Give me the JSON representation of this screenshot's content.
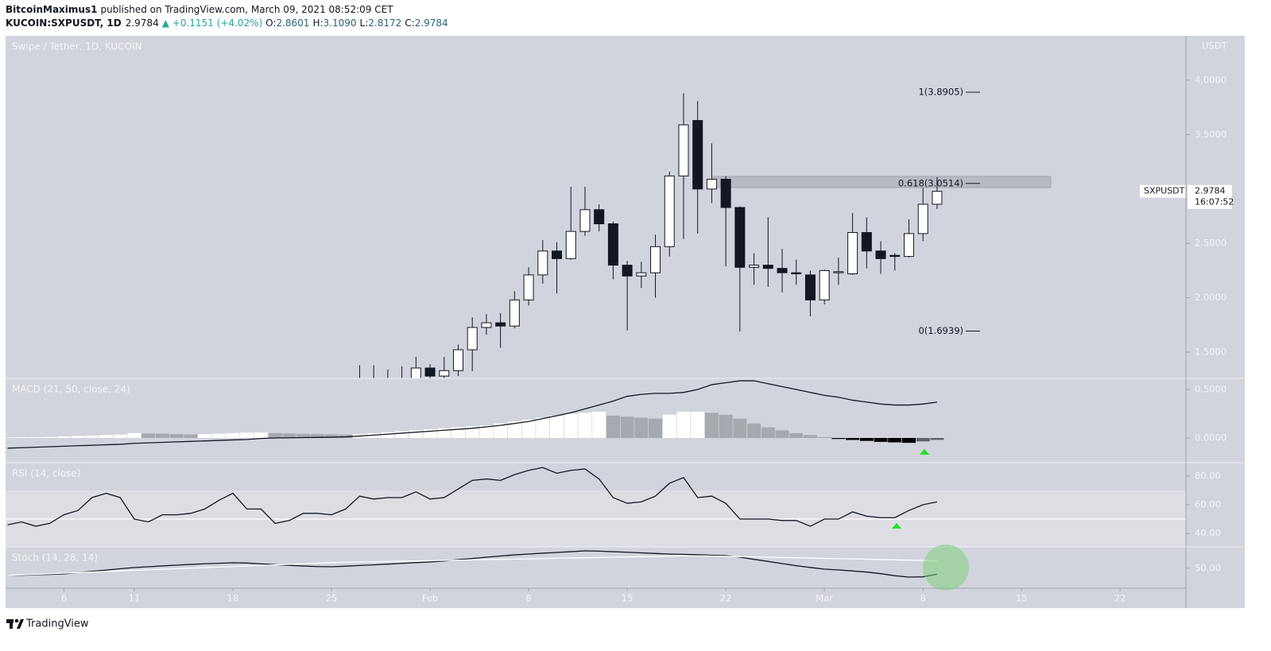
{
  "header": {
    "author": "BitcoinMaximus1",
    "published": "published on TradingView.com, March 09, 2021 08:52:09 CET",
    "symbol": "KUCOIN:SXPUSDT, 1D",
    "price": "2.9784",
    "change": "▲ +0.1151 (+4.02%)",
    "open_label": "O:",
    "open": "2.8601",
    "high_label": "H:",
    "high": "3.1090",
    "low_label": "L:",
    "low": "2.8172",
    "close_label": "C:",
    "close": "2.9784"
  },
  "price_tag": {
    "symbol": "SXPUSDT",
    "countdown": "16:07:52"
  },
  "footer": {
    "brand": "TradingView"
  },
  "chart_data": [
    {
      "type": "candlestick",
      "title": "Swipe / Tether, 1D, KUCOIN",
      "axis_label": "USDT",
      "x": [
        27,
        28,
        29,
        30,
        31,
        32,
        33,
        34,
        35,
        36,
        37,
        38,
        39,
        40,
        41,
        42,
        43,
        44,
        45,
        46,
        47,
        48,
        49,
        50,
        51,
        52,
        53,
        54,
        55,
        56,
        57,
        58,
        59,
        60,
        61,
        62,
        63,
        64,
        65,
        66,
        67,
        68
      ],
      "open": [
        1.22,
        1.24,
        1.23,
        1.22,
        1.25,
        1.354,
        1.28,
        1.33,
        1.522,
        1.727,
        1.77,
        1.74,
        1.98,
        2.21,
        2.43,
        2.36,
        2.61,
        2.81,
        2.68,
        2.3,
        2.2,
        2.23,
        2.47,
        3.12,
        3.63,
        3.0,
        3.09,
        2.83,
        2.28,
        2.3,
        2.27,
        2.23,
        2.21,
        1.98,
        2.23,
        2.22,
        2.6,
        2.43,
        2.39,
        2.38,
        2.59,
        2.8601
      ],
      "high": [
        1.38,
        1.38,
        1.34,
        1.37,
        1.456,
        1.39,
        1.456,
        1.57,
        1.82,
        1.85,
        1.86,
        2.06,
        2.28,
        2.53,
        2.51,
        3.02,
        3.02,
        2.86,
        2.7,
        2.34,
        2.33,
        2.58,
        3.16,
        3.88,
        3.81,
        3.42,
        3.12,
        2.84,
        2.41,
        2.74,
        2.45,
        2.35,
        2.25,
        2.26,
        2.37,
        2.78,
        2.74,
        2.52,
        2.41,
        2.72,
        3.01,
        3.109
      ],
      "low": [
        1.15,
        1.18,
        1.17,
        1.16,
        1.2,
        1.25,
        1.25,
        1.28,
        1.325,
        1.66,
        1.54,
        1.72,
        1.93,
        2.13,
        2.04,
        2.35,
        2.57,
        2.61,
        2.17,
        1.7,
        2.09,
        2.0,
        2.38,
        2.54,
        2.59,
        2.87,
        2.29,
        1.69,
        2.12,
        2.1,
        2.05,
        2.12,
        1.83,
        1.94,
        2.12,
        2.21,
        2.27,
        2.22,
        2.25,
        2.37,
        2.52,
        2.8172
      ],
      "close": [
        1.24,
        1.23,
        1.22,
        1.25,
        1.354,
        1.28,
        1.33,
        1.522,
        1.727,
        1.77,
        1.74,
        1.98,
        2.21,
        2.43,
        2.36,
        2.61,
        2.81,
        2.68,
        2.3,
        2.2,
        2.23,
        2.47,
        3.12,
        3.59,
        3.0,
        3.09,
        2.83,
        2.28,
        2.3,
        2.27,
        2.23,
        2.22,
        1.98,
        2.25,
        2.24,
        2.6,
        2.43,
        2.36,
        2.38,
        2.59,
        2.86,
        2.9784
      ],
      "up_color": "#ffffff",
      "down_color": "#131722",
      "annotations": [
        {
          "text": "1(3.8905)",
          "y": 3.8905
        },
        {
          "text": "0.618(3.0514)",
          "y": 3.0514
        },
        {
          "text": "0(1.6939)",
          "y": 1.6939
        }
      ],
      "xlim": [
        1.86,
        85.67
      ],
      "ylim": [
        1.259,
        4.409
      ],
      "yticks": [
        {
          "value": 1.5,
          "label": "1.5000"
        },
        {
          "value": 2,
          "label": "2.0000"
        },
        {
          "value": 2.5,
          "label": "2.5000"
        },
        {
          "value": 3,
          "label": "3.0000"
        },
        {
          "value": 3.5,
          "label": "3.5000"
        },
        {
          "value": 4,
          "label": "4.0000"
        }
      ]
    },
    {
      "type": "combo",
      "title": "MACD (21, 50, close, 24)",
      "x": [
        2,
        3,
        4,
        5,
        6,
        7,
        8,
        9,
        10,
        11,
        12,
        13,
        14,
        15,
        16,
        17,
        18,
        19,
        20,
        21,
        22,
        23,
        24,
        25,
        26,
        27,
        28,
        29,
        30,
        31,
        32,
        33,
        34,
        35,
        36,
        37,
        38,
        39,
        40,
        41,
        42,
        43,
        44,
        45,
        46,
        47,
        48,
        49,
        50,
        51,
        52,
        53,
        54,
        55,
        56,
        57,
        58,
        59,
        60,
        61,
        62,
        63,
        64,
        65,
        66,
        67,
        68
      ],
      "series": [
        {
          "type": "histogram",
          "colors": [
            "#ffffff",
            "#a7a9b0",
            "#000000",
            "#5f6168"
          ],
          "values": [
            0.005,
            0.007,
            0.008,
            0.01,
            0.015,
            0.02,
            0.025,
            0.03,
            0.035,
            0.05,
            0.047,
            0.044,
            0.04,
            0.038,
            0.04,
            0.045,
            0.05,
            0.055,
            0.056,
            0.05,
            0.046,
            0.043,
            0.04,
            0.038,
            0.035,
            0.04,
            0.05,
            0.06,
            0.07,
            0.08,
            0.09,
            0.1,
            0.11,
            0.12,
            0.13,
            0.15,
            0.17,
            0.19,
            0.21,
            0.23,
            0.25,
            0.26,
            0.27,
            0.23,
            0.22,
            0.21,
            0.2,
            0.24,
            0.27,
            0.27,
            0.26,
            0.24,
            0.2,
            0.15,
            0.11,
            0.08,
            0.05,
            0.03,
            0.01,
            -0.01,
            -0.02,
            -0.03,
            -0.04,
            -0.045,
            -0.05,
            -0.035,
            -0.02
          ]
        },
        {
          "type": "line",
          "color": "#131722",
          "values": [
            -0.105,
            -0.1,
            -0.095,
            -0.09,
            -0.085,
            -0.08,
            -0.075,
            -0.07,
            -0.065,
            -0.055,
            -0.05,
            -0.045,
            -0.04,
            -0.035,
            -0.03,
            -0.025,
            -0.02,
            -0.015,
            -0.005,
            0,
            0.002,
            0.004,
            0.006,
            0.008,
            0.012,
            0.02,
            0.03,
            0.04,
            0.05,
            0.06,
            0.07,
            0.08,
            0.09,
            0.1,
            0.115,
            0.13,
            0.15,
            0.17,
            0.2,
            0.23,
            0.26,
            0.3,
            0.34,
            0.38,
            0.43,
            0.45,
            0.46,
            0.46,
            0.47,
            0.5,
            0.55,
            0.57,
            0.59,
            0.59,
            0.56,
            0.53,
            0.5,
            0.47,
            0.44,
            0.42,
            0.39,
            0.37,
            0.35,
            0.34,
            0.34,
            0.35,
            0.37
          ]
        }
      ],
      "xlim": [
        1.86,
        85.67
      ],
      "ylim": [
        -0.254,
        0.615
      ],
      "yticks": [
        {
          "value": 0,
          "label": "0.0000"
        },
        {
          "value": 0.5,
          "label": "0.5000"
        }
      ]
    },
    {
      "type": "line",
      "title": "RSI (14, close)",
      "band": [
        30,
        70
      ],
      "band_color": "#dcdee4",
      "hline": 50,
      "x": [
        2,
        3,
        4,
        5,
        6,
        7,
        8,
        9,
        10,
        11,
        12,
        13,
        14,
        15,
        16,
        17,
        18,
        19,
        20,
        21,
        22,
        23,
        24,
        25,
        26,
        27,
        28,
        29,
        30,
        31,
        32,
        33,
        34,
        35,
        36,
        37,
        38,
        39,
        40,
        41,
        42,
        43,
        44,
        45,
        46,
        47,
        48,
        49,
        50,
        51,
        52,
        53,
        54,
        55,
        56,
        57,
        58,
        59,
        60,
        61,
        62,
        63,
        64,
        65,
        66,
        67,
        68
      ],
      "series": [
        {
          "color": "#131722",
          "values": [
            46,
            48,
            45,
            47,
            53,
            56,
            65,
            68,
            65,
            50,
            48,
            53,
            53,
            54,
            57,
            63,
            68,
            57,
            57,
            47,
            49,
            54,
            54,
            53,
            57,
            66,
            64,
            65,
            65,
            69,
            64,
            65,
            71,
            77,
            78,
            77,
            81,
            84,
            86,
            82,
            84,
            85,
            78,
            65,
            61,
            62,
            66,
            75,
            79,
            65,
            66,
            61,
            50,
            50,
            50,
            49,
            49,
            45,
            50,
            50,
            55,
            52,
            51,
            51,
            56,
            60,
            62
          ]
        }
      ],
      "xlim": [
        1.86,
        85.67
      ],
      "ylim": [
        30.6,
        89.4
      ],
      "yticks": [
        {
          "value": 40,
          "label": "40.00"
        },
        {
          "value": 60,
          "label": "60.00"
        },
        {
          "value": 80,
          "label": "80.00"
        }
      ]
    },
    {
      "type": "line",
      "title": "Stoch (14, 28, 14)",
      "x": [
        2,
        3,
        4,
        5,
        6,
        7,
        8,
        9,
        10,
        11,
        12,
        13,
        14,
        15,
        16,
        17,
        18,
        19,
        20,
        21,
        22,
        23,
        24,
        25,
        26,
        27,
        28,
        29,
        30,
        31,
        32,
        33,
        34,
        35,
        36,
        37,
        38,
        39,
        40,
        41,
        42,
        43,
        44,
        45,
        46,
        47,
        48,
        49,
        50,
        51,
        52,
        53,
        54,
        55,
        56,
        57,
        58,
        59,
        60,
        61,
        62,
        63,
        64,
        65,
        66,
        67,
        68
      ],
      "series": [
        {
          "color": "#131722",
          "values": [
            43.3,
            43.5,
            44,
            44.3,
            44.75,
            46,
            47.2,
            48.4,
            49.6,
            50.75,
            51.5,
            52.3,
            53,
            53.7,
            54.3,
            54.8,
            55.25,
            55,
            54.2,
            53.5,
            52.8,
            52.2,
            51.7,
            51.5,
            52,
            52.7,
            53.3,
            54,
            54.7,
            55.4,
            56,
            57,
            58.2,
            59.3,
            60.5,
            61.6,
            62.7,
            63.5,
            64.3,
            65,
            65.7,
            66.5,
            66.2,
            65.7,
            65.2,
            64.6,
            64,
            63.5,
            63.2,
            62.8,
            62.4,
            62,
            60.5,
            58.5,
            56.5,
            54.5,
            52.5,
            50.8,
            49.25,
            48.5,
            47.5,
            46.5,
            45,
            43,
            41.75,
            42,
            44.5
          ]
        },
        {
          "color": "#ffffff",
          "values": [
            43.3,
            43.8,
            44.4,
            44.9,
            45.4,
            46,
            46.5,
            47,
            47.5,
            48.1,
            48.6,
            49.1,
            49.6,
            50.2,
            50.7,
            51.2,
            51.7,
            52.3,
            52.8,
            53.3,
            53.8,
            54.4,
            54.9,
            55.5,
            55.7,
            56,
            56.2,
            56.5,
            56.7,
            57,
            57.2,
            57.5,
            57.7,
            58,
            58.2,
            58.5,
            58.7,
            59,
            59.2,
            59.5,
            59.7,
            60,
            60.2,
            60.5,
            60.7,
            61,
            61.2,
            61.5,
            61.7,
            61.8,
            61.6,
            61.3,
            61,
            60.8,
            60.5,
            60.2,
            60,
            59.7,
            59.4,
            59.1,
            58.9,
            58.6,
            58.3,
            58,
            57.7,
            57.4,
            57.1
          ]
        }
      ],
      "xlim": [
        1.86,
        85.67
      ],
      "ylim": [
        31.25,
        70.25
      ],
      "yticks": [
        {
          "value": 50,
          "label": "50.00"
        }
      ],
      "xticks": [
        6,
        11,
        18,
        25,
        {
          "value": 32,
          "label": "Feb"
        },
        {
          "value": 39,
          "label": "8"
        },
        {
          "value": 46,
          "label": "15"
        },
        {
          "value": 53,
          "label": "22"
        },
        {
          "value": 60,
          "label": "Mar"
        },
        {
          "value": 67,
          "label": "8"
        },
        {
          "value": 74,
          "label": "15"
        },
        {
          "value": 81,
          "label": "22"
        }
      ]
    }
  ]
}
